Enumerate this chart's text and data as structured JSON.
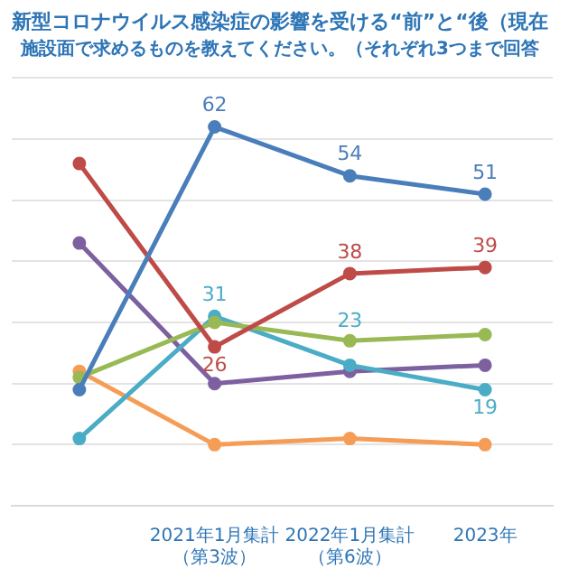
{
  "chart_data": {
    "type": "line",
    "title": "新型コロナウイルス感染症の影響を受ける“前”と“後（現在",
    "subtitle": "施設面で求めるものを教えてください。（それぞれ3つまで回答",
    "categories": [
      null,
      "2021年1月集計（第3波）",
      "2022年1月集計（第6波）",
      "2023年"
    ],
    "series": [
      {
        "color": "#4a7ebb",
        "values": [
          19,
          62,
          54,
          51
        ],
        "value_labels": [
          null,
          "62",
          "54",
          "51"
        ]
      },
      {
        "color": "#be4b48",
        "values": [
          56,
          26,
          38,
          39
        ],
        "value_labels": [
          null,
          "26",
          "38",
          "39"
        ]
      },
      {
        "color": "#98b954",
        "values": [
          21,
          30,
          27,
          28
        ]
      },
      {
        "color": "#4bacc6",
        "values": [
          11,
          31,
          23,
          19
        ],
        "value_labels": [
          null,
          "31",
          "23",
          "19"
        ]
      },
      {
        "color": "#7d60a0",
        "values": [
          43,
          20,
          22,
          23
        ]
      },
      {
        "color": "#f59d56",
        "values": [
          22,
          10,
          11,
          10
        ]
      }
    ],
    "ylim": [
      0,
      70
    ],
    "yticks": [
      {
        "value": 0,
        "label": null
      },
      {
        "value": 10,
        "label": null
      },
      {
        "value": 20,
        "label": null
      },
      {
        "value": 30,
        "label": null
      },
      {
        "value": 40,
        "label": null
      },
      {
        "value": 50,
        "label": null
      },
      {
        "value": 60,
        "label": null
      },
      {
        "value": 70,
        "label": null
      }
    ],
    "tick_labels": "x",
    "grid": "y",
    "legend": false,
    "marker": "circle",
    "line_style": "solid"
  }
}
